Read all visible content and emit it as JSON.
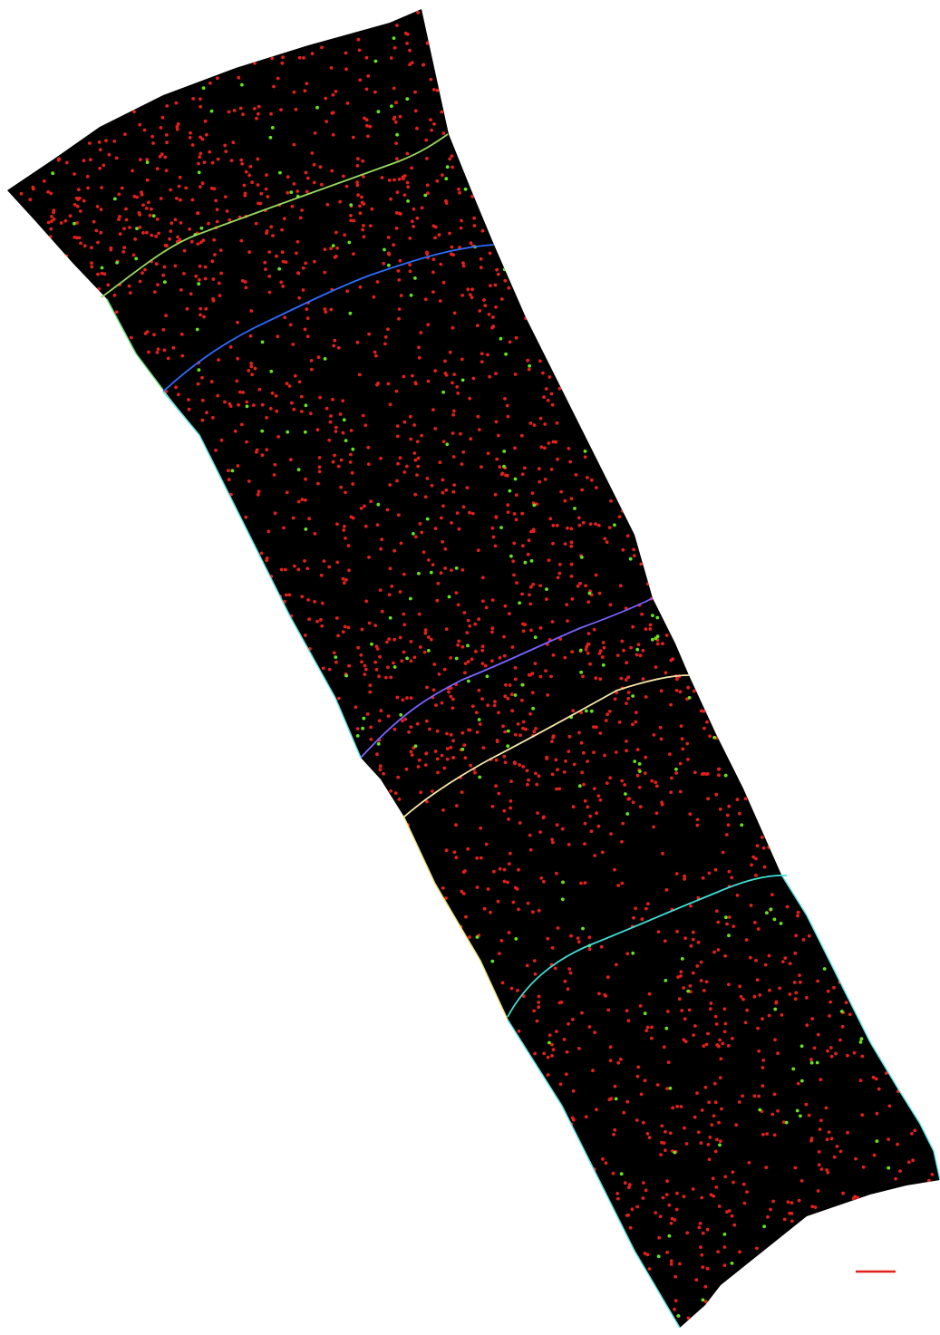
{
  "image": {
    "background_color": "#ffffff",
    "section_color": "#000000",
    "marker_colors": {
      "red_cell": "#e3201b",
      "green_cell": "#66e619"
    },
    "boundary_colors": [
      "#9ad85e",
      "#2f6bff",
      "#7a62ff",
      "#f5e6a8",
      "#41e0d6"
    ],
    "edge_colors": {
      "left_green": "#5ad36a",
      "left_cyan": "#4fe3e0",
      "left_yellow": "#e8e06a",
      "right_cyan": "#58e6e6"
    },
    "scale_bar_color": "#e3201b",
    "cell_counts": {
      "red": 1900,
      "green": 190
    }
  }
}
